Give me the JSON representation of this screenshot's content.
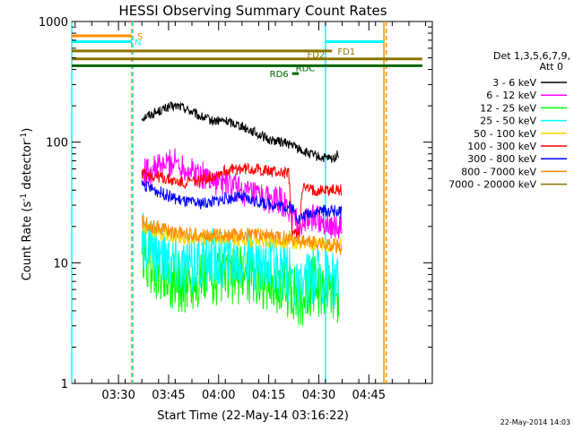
{
  "chart_data": {
    "type": "line",
    "title": "HESSI Observing Summary Count Rates",
    "xlabel": "Start Time (22-May-14 03:16:22)",
    "ylabel": "Count Rate (s",
    "ylabel_sup": "-1",
    "ylabel_mid": " detector",
    "ylabel_sup2": "-1",
    "ylabel_end": ")",
    "y_scale": "log",
    "ylim": [
      1,
      1000
    ],
    "xlim_minutes_after_0316": [
      0,
      108
    ],
    "x_ticks": [
      {
        "label": "03:30",
        "minute": 14
      },
      {
        "label": "03:45",
        "minute": 29
      },
      {
        "label": "04:00",
        "minute": 44
      },
      {
        "label": "04:15",
        "minute": 59
      },
      {
        "label": "04:30",
        "minute": 74
      },
      {
        "label": "04:45",
        "minute": 89
      }
    ],
    "y_ticks": [
      {
        "label": "1",
        "value": 1
      },
      {
        "label": "10",
        "value": 10
      },
      {
        "label": "100",
        "value": 100
      },
      {
        "label": "1000",
        "value": 1000
      }
    ],
    "legend_header": [
      "Det 1,3,5,6,7,9,",
      "Att 0"
    ],
    "legend_placement": "right",
    "series": [
      {
        "name": "3 - 6 keV",
        "color": "#000000",
        "points": [
          [
            21,
            160
          ],
          [
            25,
            175
          ],
          [
            29,
            195
          ],
          [
            32,
            200
          ],
          [
            35,
            185
          ],
          [
            38,
            165
          ],
          [
            42,
            150
          ],
          [
            46,
            150
          ],
          [
            50,
            140
          ],
          [
            55,
            120
          ],
          [
            59,
            105
          ],
          [
            63,
            100
          ],
          [
            66,
            95
          ],
          [
            70,
            82
          ],
          [
            74,
            75
          ],
          [
            78,
            72
          ],
          [
            80,
            80
          ]
        ]
      },
      {
        "name": "6 - 12 keV",
        "color": "#ff00ff",
        "points": [
          [
            21,
            55
          ],
          [
            25,
            60
          ],
          [
            28,
            65
          ],
          [
            31,
            70
          ],
          [
            34,
            62
          ],
          [
            37,
            55
          ],
          [
            40,
            52
          ],
          [
            44,
            46
          ],
          [
            48,
            44
          ],
          [
            52,
            38
          ],
          [
            56,
            35
          ],
          [
            60,
            33
          ],
          [
            63,
            32
          ],
          [
            66,
            24
          ],
          [
            68,
            20
          ],
          [
            70,
            22
          ],
          [
            73,
            24
          ],
          [
            76,
            22
          ],
          [
            79,
            20
          ],
          [
            81,
            18
          ]
        ]
      },
      {
        "name": "12 - 25 keV",
        "color": "#00ff00",
        "points": [
          [
            21,
            11
          ],
          [
            25,
            9
          ],
          [
            28,
            8
          ],
          [
            31,
            7
          ],
          [
            34,
            6.5
          ],
          [
            38,
            7
          ],
          [
            42,
            8
          ],
          [
            46,
            7.5
          ],
          [
            50,
            8
          ],
          [
            54,
            8
          ],
          [
            58,
            7
          ],
          [
            62,
            6.5
          ],
          [
            66,
            6
          ],
          [
            68,
            4.5
          ],
          [
            72,
            6.5
          ],
          [
            76,
            6
          ],
          [
            80,
            5
          ]
        ]
      },
      {
        "name": "25 - 50 keV",
        "color": "#00ffff",
        "points": [
          [
            21,
            15
          ],
          [
            25,
            12
          ],
          [
            28,
            11
          ],
          [
            31,
            10
          ],
          [
            34,
            9
          ],
          [
            38,
            10
          ],
          [
            42,
            11
          ],
          [
            46,
            11
          ],
          [
            50,
            11
          ],
          [
            54,
            10.5
          ],
          [
            58,
            10
          ],
          [
            62,
            9
          ],
          [
            66,
            8
          ],
          [
            68,
            5.5
          ],
          [
            72,
            8
          ],
          [
            76,
            8
          ],
          [
            80,
            7
          ]
        ]
      },
      {
        "name": "50 - 100 keV",
        "color": "#ffd700",
        "points": [
          [
            21,
            20
          ],
          [
            25,
            18
          ],
          [
            28,
            17
          ],
          [
            31,
            16.5
          ],
          [
            34,
            16
          ],
          [
            38,
            16
          ],
          [
            42,
            16
          ],
          [
            46,
            16
          ],
          [
            50,
            15.5
          ],
          [
            54,
            15.5
          ],
          [
            58,
            15
          ],
          [
            62,
            15
          ],
          [
            66,
            15
          ],
          [
            70,
            14.5
          ],
          [
            74,
            14.5
          ],
          [
            78,
            14
          ],
          [
            81,
            14
          ]
        ]
      },
      {
        "name": "100 - 300 keV",
        "color": "#ff0000",
        "points": [
          [
            21,
            55
          ],
          [
            25,
            52
          ],
          [
            28,
            50
          ],
          [
            31,
            47
          ],
          [
            34,
            46
          ],
          [
            38,
            48
          ],
          [
            42,
            52
          ],
          [
            46,
            58
          ],
          [
            50,
            60
          ],
          [
            54,
            60
          ],
          [
            58,
            58
          ],
          [
            62,
            56
          ],
          [
            65,
            55
          ],
          [
            66,
            18
          ],
          [
            68,
            17
          ],
          [
            69,
            42
          ],
          [
            72,
            40
          ],
          [
            76,
            40
          ],
          [
            79,
            40
          ],
          [
            81,
            40
          ]
        ]
      },
      {
        "name": "300 - 800 keV",
        "color": "#0000ff",
        "points": [
          [
            21,
            45
          ],
          [
            25,
            40
          ],
          [
            28,
            37
          ],
          [
            31,
            34
          ],
          [
            34,
            32
          ],
          [
            38,
            31
          ],
          [
            42,
            32
          ],
          [
            46,
            34
          ],
          [
            50,
            35
          ],
          [
            54,
            33
          ],
          [
            58,
            31
          ],
          [
            62,
            30
          ],
          [
            66,
            29
          ],
          [
            68,
            23
          ],
          [
            71,
            26
          ],
          [
            75,
            27
          ],
          [
            79,
            27
          ],
          [
            81,
            26
          ]
        ]
      },
      {
        "name": "800 - 7000 keV",
        "color": "#ff8c00",
        "points": [
          [
            21,
            22
          ],
          [
            25,
            20
          ],
          [
            28,
            19
          ],
          [
            31,
            18
          ],
          [
            34,
            17.5
          ],
          [
            38,
            17
          ],
          [
            42,
            17
          ],
          [
            46,
            17
          ],
          [
            50,
            17
          ],
          [
            54,
            17
          ],
          [
            58,
            17
          ],
          [
            62,
            16.5
          ],
          [
            66,
            16
          ],
          [
            70,
            15
          ],
          [
            74,
            14.5
          ],
          [
            78,
            14
          ],
          [
            81,
            13
          ]
        ]
      },
      {
        "name": "7000 - 20000 keV",
        "color": "#8b7500",
        "points": []
      }
    ],
    "flag_bars": [
      {
        "label": "S",
        "color": "#ff8c00",
        "x_start": 0,
        "x_end": 18,
        "y": 760
      },
      {
        "label": "N",
        "color": "#00ffff",
        "x_start": 0,
        "x_end": 18,
        "y": 680
      },
      {
        "label": "FD1",
        "color": "#8b7500",
        "x_start": 0,
        "x_end": 78,
        "y": 570
      },
      {
        "label": "FD2",
        "color": "#8b7500",
        "x_start": 0,
        "x_end": 105,
        "y": 490
      },
      {
        "label": "RDC",
        "color": "#006400",
        "x_start": 0,
        "x_end": 105,
        "y": 430
      },
      {
        "label": "RD6",
        "color": "#006400",
        "x_start": 66,
        "x_end": 68,
        "y": 370
      }
    ],
    "vertical_lines": [
      {
        "color": "#00ffff",
        "minute": 0,
        "style": "solid"
      },
      {
        "color": "#ff8c00",
        "minute": 18,
        "style": "dashed"
      },
      {
        "color": "#00ffff",
        "minute": 18.3,
        "style": "dashed"
      },
      {
        "color": "#00ffff",
        "minute": 76,
        "style": "solid"
      },
      {
        "color": "#ff8c00",
        "minute": 93.5,
        "style": "solid"
      },
      {
        "color": "#ff8c00",
        "minute": 94.2,
        "style": "dashed"
      }
    ],
    "fd1_cyan_bar": {
      "color": "#00ffff",
      "x_start": 76,
      "x_end": 93.5,
      "y": 680
    }
  },
  "footer_date": "22-May-2014 14:03"
}
